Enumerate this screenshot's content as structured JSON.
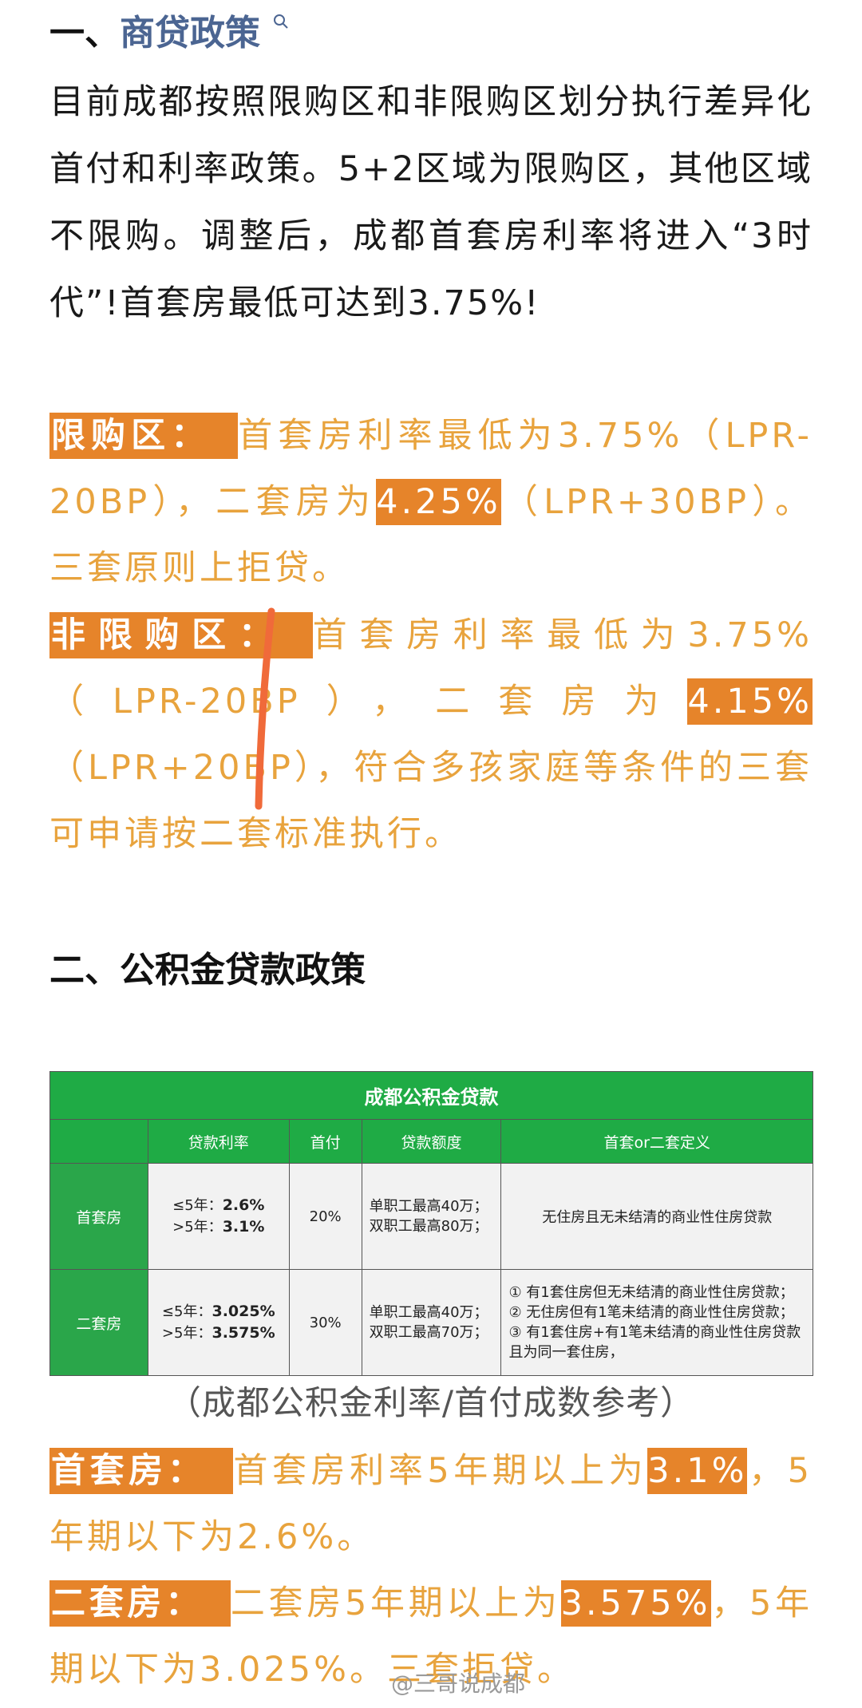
{
  "section1": {
    "heading": {
      "prefix": "一、",
      "link": "商贷政策"
    },
    "intro": "目前成都按照限购区和非限购区划分执行差异化首付和利率政策。5+2区域为限购区，其他区域不限购。调整后，成都首套房利率将进入“3时代”!首套房最低可达到3.75%!",
    "restricted": {
      "label": "限购区：",
      "text_before": "首套房利率最低为3.75%（LPR-20BP），二套房为",
      "highlight": "4.25%",
      "text_after": "（LPR+30BP）。三套原则上拒贷。"
    },
    "unrestricted": {
      "label": "非限购区：",
      "text_before": "首套房利率最低为3.75%（LPR-20BP），二套房为",
      "highlight": "4.15%",
      "text_after": "（LPR+20BP），符合多孩家庭等条件的三套可申请按二套标准执行。"
    }
  },
  "section2": {
    "heading": "二、公积金贷款政策",
    "table": {
      "title": "成都公积金贷款",
      "headers": [
        "贷款利率",
        "首付",
        "贷款额度",
        "首套or二套定义"
      ],
      "rows": [
        {
          "type": "首套房",
          "rates": [
            {
              "term": "≤5年：",
              "rate": "2.6%"
            },
            {
              "term": ">5年：",
              "rate": "3.1%"
            }
          ],
          "down_payment": "20%",
          "limits": [
            "单职工最高40万；",
            "双职工最高80万；"
          ],
          "definition": [
            "无住房且无未结清的商业性住房贷款"
          ]
        },
        {
          "type": "二套房",
          "rates": [
            {
              "term": "≤5年：",
              "rate": "3.025%"
            },
            {
              "term": ">5年：",
              "rate": "3.575%"
            }
          ],
          "down_payment": "30%",
          "limits": [
            "单职工最高40万；",
            "双职工最高70万；"
          ],
          "definition": [
            "① 有1套住房但无未结清的商业性住房贷款；",
            "② 无住房但有1笔未结清的商业性住房贷款；",
            "③ 有1套住房+有1笔未结清的商业性住房贷款且为同一套住房，"
          ]
        }
      ]
    },
    "caption": "（成都公积金利率/首付成数参考）",
    "first": {
      "label": "首套房：",
      "text_before": "首套房利率5年期以上为",
      "highlight": "3.1%",
      "text_after": "，5年期以下为2.6%。"
    },
    "second": {
      "label": "二套房：",
      "text_before": "二套房5年期以上为",
      "highlight": "3.575%",
      "text_after": "，5年期以下为3.025%。三套拒贷。"
    }
  },
  "watermark": "@三哥说成都"
}
